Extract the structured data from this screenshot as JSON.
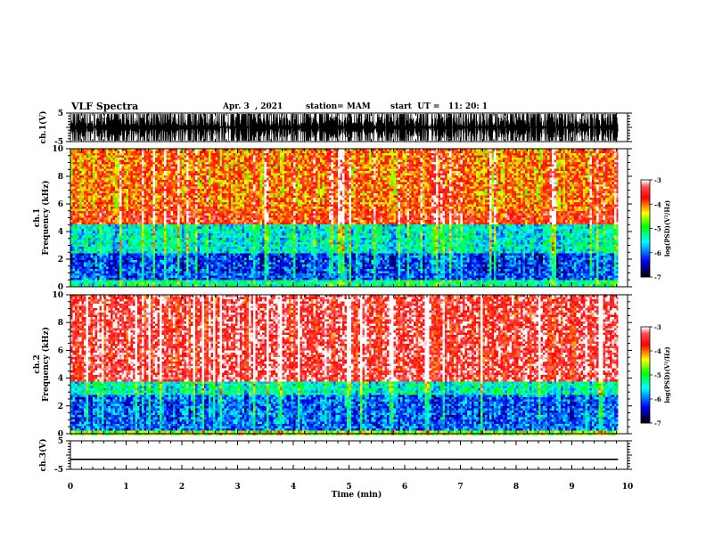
{
  "header": {
    "title": "VLF Spectra",
    "date": "Apr. 3  , 2021",
    "station": "station= MAM",
    "start": "start  UT =   11: 20: 1"
  },
  "chart_data": [
    {
      "type": "line",
      "panel": "ch1-waveform",
      "ylabel": "ch.1(V)",
      "yticks": [
        "5",
        "-5"
      ],
      "ylim": [
        -5,
        5
      ],
      "xlim": [
        0,
        10
      ],
      "description_of_signal": "dense impulsive spikes"
    },
    {
      "type": "heatmap",
      "panel": "ch1-spectrogram",
      "ylabel": "Frequency  (kHz)",
      "ylabel_channel": "ch.1",
      "yticks": [
        "0",
        "2",
        "4",
        "6",
        "8",
        "10"
      ],
      "ylim": [
        0,
        10
      ],
      "xlim": [
        0,
        10
      ],
      "data_end_min": 9.83,
      "colorbar": {
        "label": "log(PSD)(V²/Hz)",
        "ticks": [
          "-3",
          "-4",
          "-5",
          "-6",
          "-7"
        ],
        "range": [
          -7,
          -3
        ]
      },
      "bands_kHz_level": [
        [
          0,
          0.6,
          -5.2
        ],
        [
          0.6,
          2.5,
          -6.1
        ],
        [
          2.5,
          4.6,
          -5.4
        ],
        [
          4.6,
          5.5,
          -3.6
        ],
        [
          5.5,
          10,
          -3.9
        ]
      ]
    },
    {
      "type": "heatmap",
      "panel": "ch2-spectrogram",
      "ylabel": "Frequency  (kHz)",
      "ylabel_channel": "ch.2",
      "yticks": [
        "0",
        "2",
        "4",
        "6",
        "8",
        "10"
      ],
      "ylim": [
        0,
        10
      ],
      "xlim": [
        0,
        10
      ],
      "data_end_min": 9.83,
      "colorbar": {
        "label": "log(PSD)(V²/Hz)",
        "ticks": [
          "-3",
          "-4",
          "-5",
          "-6",
          "-7"
        ],
        "range": [
          -7,
          -3
        ]
      },
      "bands_kHz_level": [
        [
          0,
          0.3,
          -4.6
        ],
        [
          0.3,
          2.8,
          -6.0
        ],
        [
          2.8,
          3.9,
          -5.3
        ],
        [
          3.9,
          10,
          -3.3
        ]
      ]
    },
    {
      "type": "line",
      "panel": "ch3-waveform",
      "ylabel": "ch.3(V)",
      "yticks": [
        "5",
        "-5"
      ],
      "ylim": [
        -5,
        5
      ],
      "xlim": [
        0,
        10
      ],
      "x": [
        0,
        9.83
      ],
      "y": [
        -1.5,
        -1.5
      ]
    }
  ],
  "xaxis": {
    "label": "Time  (min)",
    "ticks": [
      "0",
      "1",
      "2",
      "3",
      "4",
      "5",
      "6",
      "7",
      "8",
      "9",
      "10"
    ]
  },
  "colors": {
    "palette": [
      "#000000",
      "#0000ff",
      "#00ffff",
      "#00ff00",
      "#ffff00",
      "#ff0000",
      "#ffffff"
    ]
  }
}
